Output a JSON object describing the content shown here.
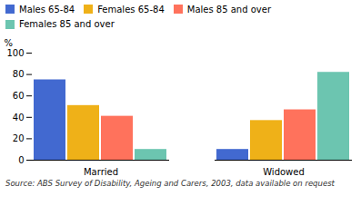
{
  "chart_data": {
    "type": "bar",
    "categories": [
      "Married",
      "Widowed"
    ],
    "series": [
      {
        "name": "Males 65-84",
        "values": [
          75,
          10
        ]
      },
      {
        "name": "Females 65-84",
        "values": [
          51,
          37
        ]
      },
      {
        "name": "Males 85 and over",
        "values": [
          41,
          47
        ]
      },
      {
        "name": "Females 85 and over",
        "values": [
          10,
          82
        ]
      }
    ],
    "ylabel": "%",
    "ylim": [
      0,
      100
    ],
    "yticks": [
      0,
      20,
      40,
      60,
      80,
      100
    ],
    "grid": false,
    "legend": "upper right",
    "caption": "Source: ABS Survey of Disability, Ageing and Carers, 2003, data available on request"
  }
}
